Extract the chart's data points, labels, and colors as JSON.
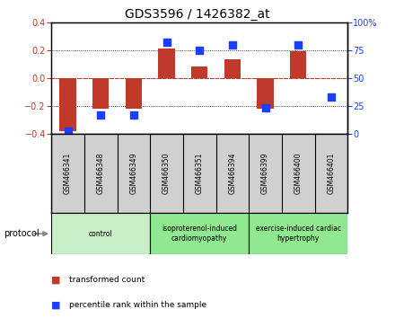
{
  "title": "GDS3596 / 1426382_at",
  "samples": [
    "GSM466341",
    "GSM466348",
    "GSM466349",
    "GSM466350",
    "GSM466351",
    "GSM466394",
    "GSM466399",
    "GSM466400",
    "GSM466401"
  ],
  "red_bars": [
    -0.38,
    -0.22,
    -0.22,
    0.21,
    0.085,
    0.135,
    -0.22,
    0.19,
    0.0
  ],
  "blue_squares_pct": [
    2,
    17,
    17,
    82,
    75,
    80,
    23,
    80,
    33
  ],
  "ylim_left": [
    -0.4,
    0.4
  ],
  "ylim_right": [
    0,
    100
  ],
  "yticks_left": [
    -0.4,
    -0.2,
    0,
    0.2,
    0.4
  ],
  "yticks_right": [
    0,
    25,
    50,
    75,
    100
  ],
  "yticklabels_right": [
    "0",
    "25",
    "50",
    "75",
    "100%"
  ],
  "groups": [
    {
      "label": "control",
      "start": 0,
      "end": 3,
      "color": "#c8f0c8"
    },
    {
      "label": "isoproterenol-induced\ncardiomyopathy",
      "start": 3,
      "end": 6,
      "color": "#90e890"
    },
    {
      "label": "exercise-induced cardiac\nhypertrophy",
      "start": 6,
      "end": 9,
      "color": "#90e890"
    }
  ],
  "bar_color": "#c0392b",
  "dot_color": "#1a3fff",
  "bar_width": 0.5,
  "dot_size": 30,
  "zero_line_color": "#c0392b",
  "sample_box_color": "#d0d0d0",
  "legend_red_label": "transformed count",
  "legend_blue_label": "percentile rank within the sample",
  "protocol_label": "protocol",
  "title_fontsize": 10
}
